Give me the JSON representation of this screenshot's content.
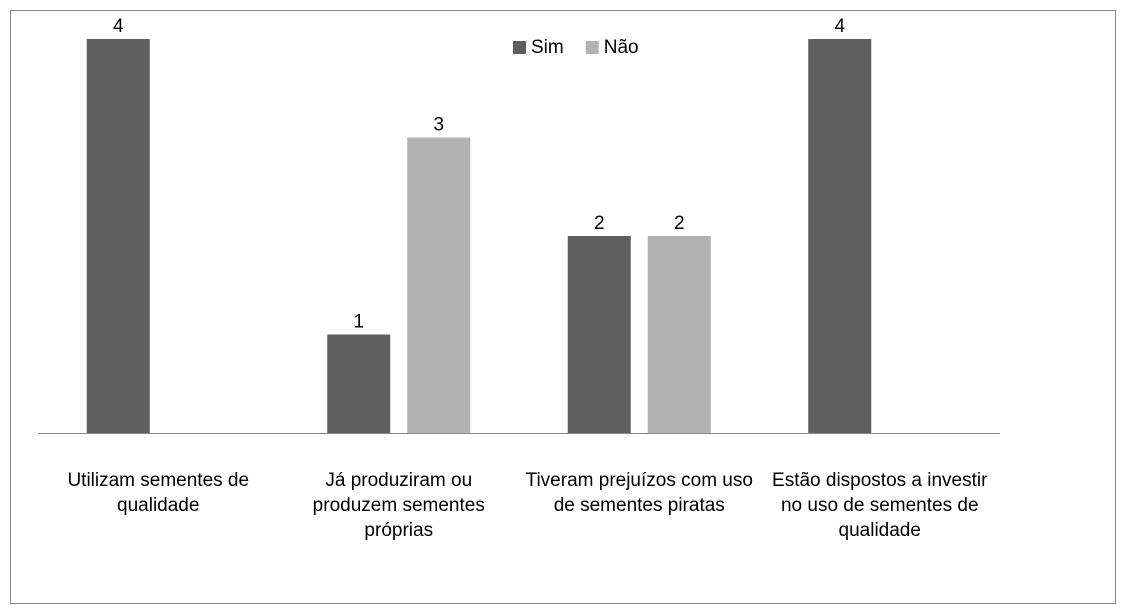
{
  "chart_data": {
    "type": "bar",
    "categories": [
      "Utilizam  sementes de qualidade",
      "Já produziram ou produzem sementes próprias",
      "Tiveram prejuízos com uso de sementes piratas",
      "Estão dispostos a investir no uso de sementes de qualidade"
    ],
    "series": [
      {
        "name": "Sim",
        "color": "#5f5f5f",
        "values": [
          4,
          1,
          2,
          4
        ]
      },
      {
        "name": "Não",
        "color": "#b2b2b2",
        "values": [
          null,
          3,
          2,
          null
        ]
      }
    ],
    "ylim": [
      0,
      4
    ],
    "legend": "top"
  }
}
